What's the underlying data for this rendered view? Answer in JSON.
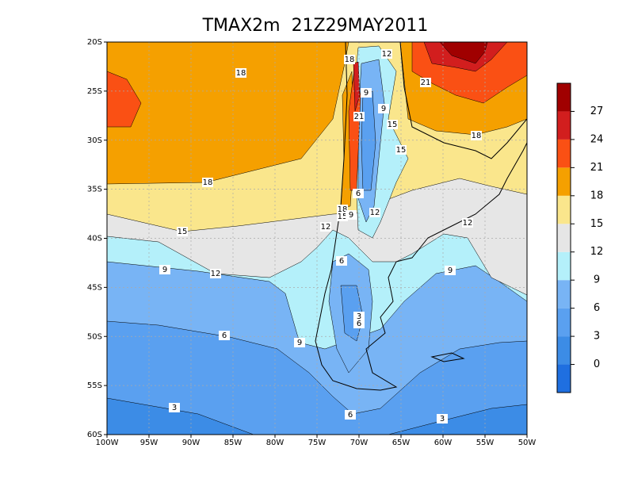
{
  "title": "TMAX2m  21Z29MAY2011",
  "lon_range": [
    -100,
    -50
  ],
  "lat_range": [
    -20,
    -60
  ],
  "x_ticks": [
    {
      "value": -100,
      "label": "100W"
    },
    {
      "value": -95,
      "label": "95W"
    },
    {
      "value": -90,
      "label": "90W"
    },
    {
      "value": -85,
      "label": "85W"
    },
    {
      "value": -80,
      "label": "80W"
    },
    {
      "value": -75,
      "label": "75W"
    },
    {
      "value": -70,
      "label": "70W"
    },
    {
      "value": -65,
      "label": "65W"
    },
    {
      "value": -60,
      "label": "60W"
    },
    {
      "value": -55,
      "label": "55W"
    },
    {
      "value": -50,
      "label": "50W"
    }
  ],
  "y_ticks": [
    {
      "value": -20,
      "label": "20S"
    },
    {
      "value": -25,
      "label": "25S"
    },
    {
      "value": -30,
      "label": "30S"
    },
    {
      "value": -35,
      "label": "35S"
    },
    {
      "value": -40,
      "label": "40S"
    },
    {
      "value": -45,
      "label": "45S"
    },
    {
      "value": -50,
      "label": "50S"
    },
    {
      "value": -55,
      "label": "55S"
    },
    {
      "value": -60,
      "label": "60S"
    }
  ],
  "colorbar": {
    "levels": [
      0,
      3,
      6,
      9,
      12,
      15,
      18,
      21,
      24,
      27
    ],
    "colors": [
      "#1f6fe0",
      "#3c8ce6",
      "#5aa0f0",
      "#78b4f5",
      "#b4f0fa",
      "#e6e6e6",
      "#fae68c",
      "#f5a000",
      "#fa5014",
      "#d21e1e",
      "#a00000"
    ]
  },
  "contour_labels": [
    18,
    18,
    12,
    9,
    9,
    21,
    21,
    15,
    15,
    18,
    18,
    6,
    18,
    12,
    15,
    9,
    12,
    15,
    12,
    6,
    9,
    12,
    9,
    3,
    6,
    6,
    9,
    3,
    6,
    3
  ]
}
